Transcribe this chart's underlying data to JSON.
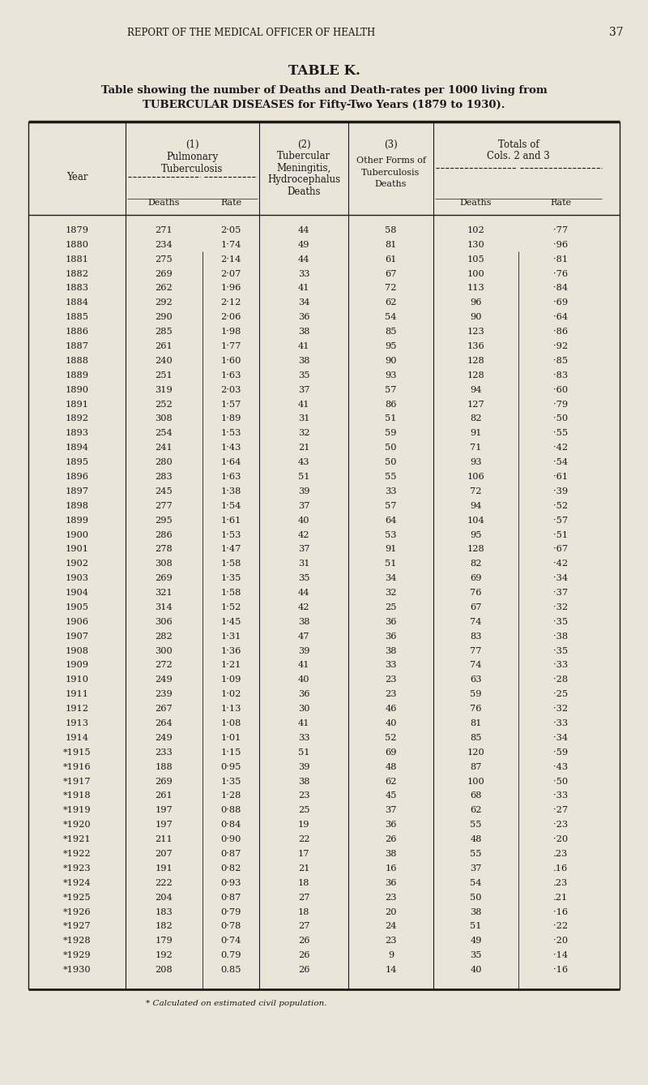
{
  "page_header": "REPORT OF THE MEDICAL OFFICER OF HEALTH",
  "page_number": "37",
  "table_title": "TABLE K.",
  "table_subtitle1": "Table showing the number of Deaths and Death-rates per 1000 living from",
  "table_subtitle2": "TUBERCULAR DISEASES for Fifty-Two Years (1879 to 1930).",
  "footnote": "* Calculated on estimated civil population.",
  "bg_color": "#EAE5D8",
  "text_color": "#1a1a1a",
  "rows": [
    {
      "year": "1879",
      "d1": 271,
      "r1": "2·05",
      "d2": 44,
      "d3": 58,
      "dt": 102,
      "rt": "·77"
    },
    {
      "year": "1880",
      "d1": 234,
      "r1": "1·74",
      "d2": 49,
      "d3": 81,
      "dt": 130,
      "rt": "·96"
    },
    {
      "year": "1881",
      "d1": 275,
      "r1": "2·14",
      "d2": 44,
      "d3": 61,
      "dt": 105,
      "rt": "·81"
    },
    {
      "year": "1882",
      "d1": 269,
      "r1": "2·07",
      "d2": 33,
      "d3": 67,
      "dt": 100,
      "rt": "·76"
    },
    {
      "year": "1883",
      "d1": 262,
      "r1": "1·96",
      "d2": 41,
      "d3": 72,
      "dt": 113,
      "rt": "·84"
    },
    {
      "year": "1884",
      "d1": 292,
      "r1": "2·12",
      "d2": 34,
      "d3": 62,
      "dt": 96,
      "rt": "·69"
    },
    {
      "year": "1885",
      "d1": 290,
      "r1": "2·06",
      "d2": 36,
      "d3": 54,
      "dt": 90,
      "rt": "·64"
    },
    {
      "year": "1886",
      "d1": 285,
      "r1": "1·98",
      "d2": 38,
      "d3": 85,
      "dt": 123,
      "rt": "·86"
    },
    {
      "year": "1887",
      "d1": 261,
      "r1": "1·77",
      "d2": 41,
      "d3": 95,
      "dt": 136,
      "rt": "·92"
    },
    {
      "year": "1888",
      "d1": 240,
      "r1": "1·60",
      "d2": 38,
      "d3": 90,
      "dt": 128,
      "rt": "·85"
    },
    {
      "year": "1889",
      "d1": 251,
      "r1": "1·63",
      "d2": 35,
      "d3": 93,
      "dt": 128,
      "rt": "·83"
    },
    {
      "year": "1890",
      "d1": 319,
      "r1": "2·03",
      "d2": 37,
      "d3": 57,
      "dt": 94,
      "rt": "·60"
    },
    {
      "year": "1891",
      "d1": 252,
      "r1": "1·57",
      "d2": 41,
      "d3": 86,
      "dt": 127,
      "rt": "·79"
    },
    {
      "year": "1892",
      "d1": 308,
      "r1": "1·89",
      "d2": 31,
      "d3": 51,
      "dt": 82,
      "rt": "·50"
    },
    {
      "year": "1893",
      "d1": 254,
      "r1": "1·53",
      "d2": 32,
      "d3": 59,
      "dt": 91,
      "rt": "·55"
    },
    {
      "year": "1894",
      "d1": 241,
      "r1": "1·43",
      "d2": 21,
      "d3": 50,
      "dt": 71,
      "rt": "·42"
    },
    {
      "year": "1895",
      "d1": 280,
      "r1": "1·64",
      "d2": 43,
      "d3": 50,
      "dt": 93,
      "rt": "·54"
    },
    {
      "year": "1896",
      "d1": 283,
      "r1": "1·63",
      "d2": 51,
      "d3": 55,
      "dt": 106,
      "rt": "·61"
    },
    {
      "year": "1897",
      "d1": 245,
      "r1": "1·38",
      "d2": 39,
      "d3": 33,
      "dt": 72,
      "rt": "·39"
    },
    {
      "year": "1898",
      "d1": 277,
      "r1": "1·54",
      "d2": 37,
      "d3": 57,
      "dt": 94,
      "rt": "·52"
    },
    {
      "year": "1899",
      "d1": 295,
      "r1": "1·61",
      "d2": 40,
      "d3": 64,
      "dt": 104,
      "rt": "·57"
    },
    {
      "year": "1900",
      "d1": 286,
      "r1": "1·53",
      "d2": 42,
      "d3": 53,
      "dt": 95,
      "rt": "·51"
    },
    {
      "year": "1901",
      "d1": 278,
      "r1": "1·47",
      "d2": 37,
      "d3": 91,
      "dt": 128,
      "rt": "·67"
    },
    {
      "year": "1902",
      "d1": 308,
      "r1": "1·58",
      "d2": 31,
      "d3": 51,
      "dt": 82,
      "rt": "·42"
    },
    {
      "year": "1903",
      "d1": 269,
      "r1": "1·35",
      "d2": 35,
      "d3": 34,
      "dt": 69,
      "rt": "·34"
    },
    {
      "year": "1904",
      "d1": 321,
      "r1": "1·58",
      "d2": 44,
      "d3": 32,
      "dt": 76,
      "rt": "·37"
    },
    {
      "year": "1905",
      "d1": 314,
      "r1": "1·52",
      "d2": 42,
      "d3": 25,
      "dt": 67,
      "rt": "·32"
    },
    {
      "year": "1906",
      "d1": 306,
      "r1": "1·45",
      "d2": 38,
      "d3": 36,
      "dt": 74,
      "rt": "·35"
    },
    {
      "year": "1907",
      "d1": 282,
      "r1": "1·31",
      "d2": 47,
      "d3": 36,
      "dt": 83,
      "rt": "·38"
    },
    {
      "year": "1908",
      "d1": 300,
      "r1": "1·36",
      "d2": 39,
      "d3": 38,
      "dt": 77,
      "rt": "·35"
    },
    {
      "year": "1909",
      "d1": 272,
      "r1": "1·21",
      "d2": 41,
      "d3": 33,
      "dt": 74,
      "rt": "·33"
    },
    {
      "year": "1910",
      "d1": 249,
      "r1": "1·09",
      "d2": 40,
      "d3": 23,
      "dt": 63,
      "rt": "·28"
    },
    {
      "year": "1911",
      "d1": 239,
      "r1": "1·02",
      "d2": 36,
      "d3": 23,
      "dt": 59,
      "rt": "·25"
    },
    {
      "year": "1912",
      "d1": 267,
      "r1": "1·13",
      "d2": 30,
      "d3": 46,
      "dt": 76,
      "rt": "·32"
    },
    {
      "year": "1913",
      "d1": 264,
      "r1": "1·08",
      "d2": 41,
      "d3": 40,
      "dt": 81,
      "rt": "·33"
    },
    {
      "year": "1914",
      "d1": 249,
      "r1": "1·01",
      "d2": 33,
      "d3": 52,
      "dt": 85,
      "rt": "·34"
    },
    {
      "year": "*1915",
      "d1": 233,
      "r1": "1·15",
      "d2": 51,
      "d3": 69,
      "dt": 120,
      "rt": "·59"
    },
    {
      "year": "*1916",
      "d1": 188,
      "r1": "0·95",
      "d2": 39,
      "d3": 48,
      "dt": 87,
      "rt": "·43"
    },
    {
      "year": "*1917",
      "d1": 269,
      "r1": "1·35",
      "d2": 38,
      "d3": 62,
      "dt": 100,
      "rt": "·50"
    },
    {
      "year": "*1918",
      "d1": 261,
      "r1": "1·28",
      "d2": 23,
      "d3": 45,
      "dt": 68,
      "rt": "·33"
    },
    {
      "year": "*1919",
      "d1": 197,
      "r1": "0·88",
      "d2": 25,
      "d3": 37,
      "dt": 62,
      "rt": "·27"
    },
    {
      "year": "*1920",
      "d1": 197,
      "r1": "0·84",
      "d2": 19,
      "d3": 36,
      "dt": 55,
      "rt": "·23"
    },
    {
      "year": "*1921",
      "d1": 211,
      "r1": "0·90",
      "d2": 22,
      "d3": 26,
      "dt": 48,
      "rt": "·20"
    },
    {
      "year": "*1922",
      "d1": 207,
      "r1": "0·87",
      "d2": 17,
      "d3": 38,
      "dt": 55,
      "rt": ".23"
    },
    {
      "year": "*1923",
      "d1": 191,
      "r1": "0·82",
      "d2": 21,
      "d3": 16,
      "dt": 37,
      "rt": ".16"
    },
    {
      "year": "*1924",
      "d1": 222,
      "r1": "0·93",
      "d2": 18,
      "d3": 36,
      "dt": 54,
      "rt": ".23"
    },
    {
      "year": "*1925",
      "d1": 204,
      "r1": "0·87",
      "d2": 27,
      "d3": 23,
      "dt": 50,
      "rt": ".21"
    },
    {
      "year": "*1926",
      "d1": 183,
      "r1": "0·79",
      "d2": 18,
      "d3": 20,
      "dt": 38,
      "rt": "·16"
    },
    {
      "year": "*1927",
      "d1": 182,
      "r1": "0·78",
      "d2": 27,
      "d3": 24,
      "dt": 51,
      "rt": "·22"
    },
    {
      "year": "*1928",
      "d1": 179,
      "r1": "0·74",
      "d2": 26,
      "d3": 23,
      "dt": 49,
      "rt": "·20"
    },
    {
      "year": "*1929",
      "d1": 192,
      "r1": "0.79",
      "d2": 26,
      "d3": 9,
      "dt": 35,
      "rt": "·14"
    },
    {
      "year": "*1930",
      "d1": 208,
      "r1": "0.85",
      "d2": 26,
      "d3": 14,
      "dt": 40,
      "rt": "·16"
    }
  ]
}
